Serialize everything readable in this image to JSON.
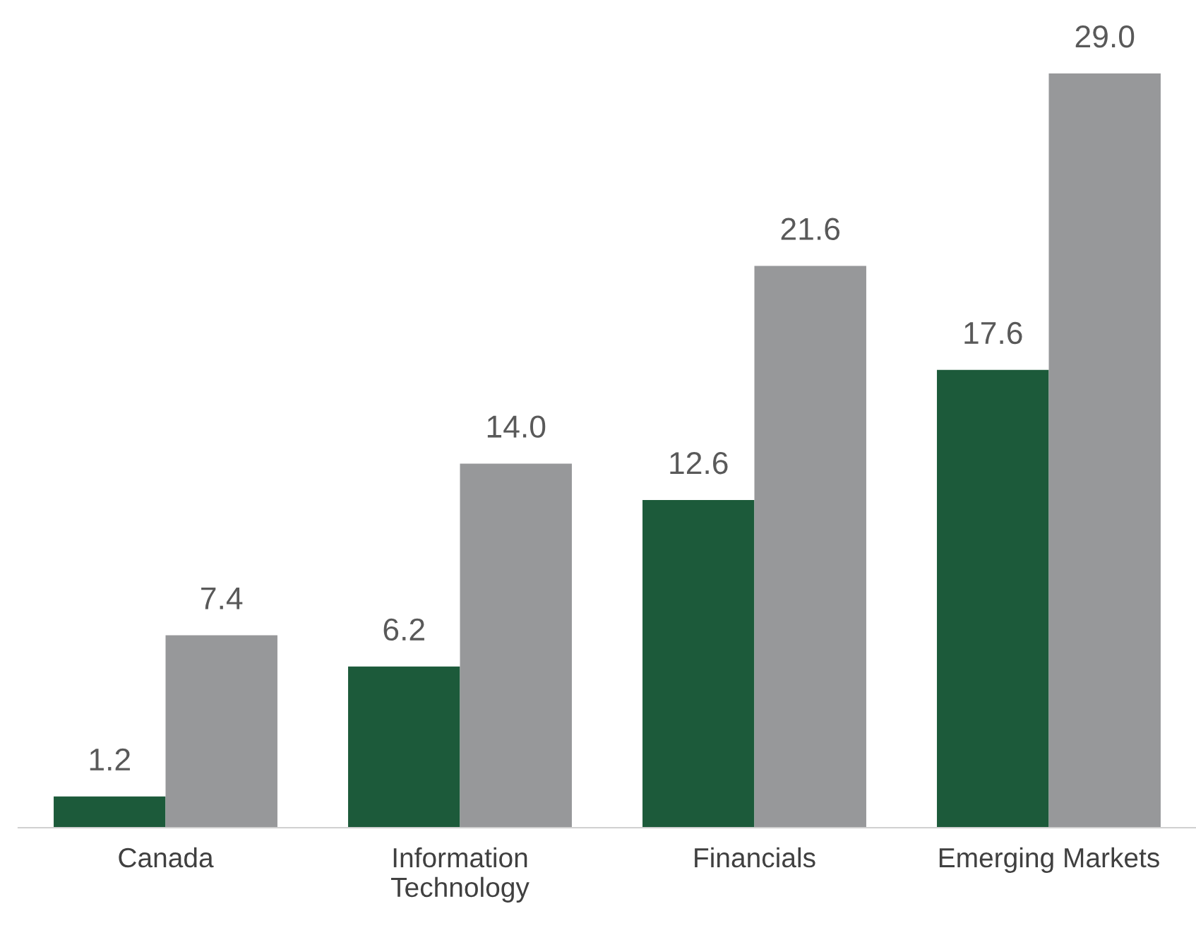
{
  "chart_data": {
    "type": "bar",
    "categories": [
      "Canada",
      "Information\nTechnology",
      "Financials",
      "Emerging Markets"
    ],
    "series": [
      {
        "color": "#1c5a3a",
        "values": [
          1.2,
          6.2,
          12.6,
          17.6
        ],
        "value_labels": [
          "1.2",
          "6.2",
          "12.6",
          "17.6"
        ]
      },
      {
        "color": "#97989a",
        "values": [
          7.4,
          14.0,
          21.6,
          29.0
        ],
        "value_labels": [
          "7.4",
          "14.0",
          "21.6",
          "29.0"
        ]
      }
    ],
    "grid": false,
    "legend": false
  }
}
